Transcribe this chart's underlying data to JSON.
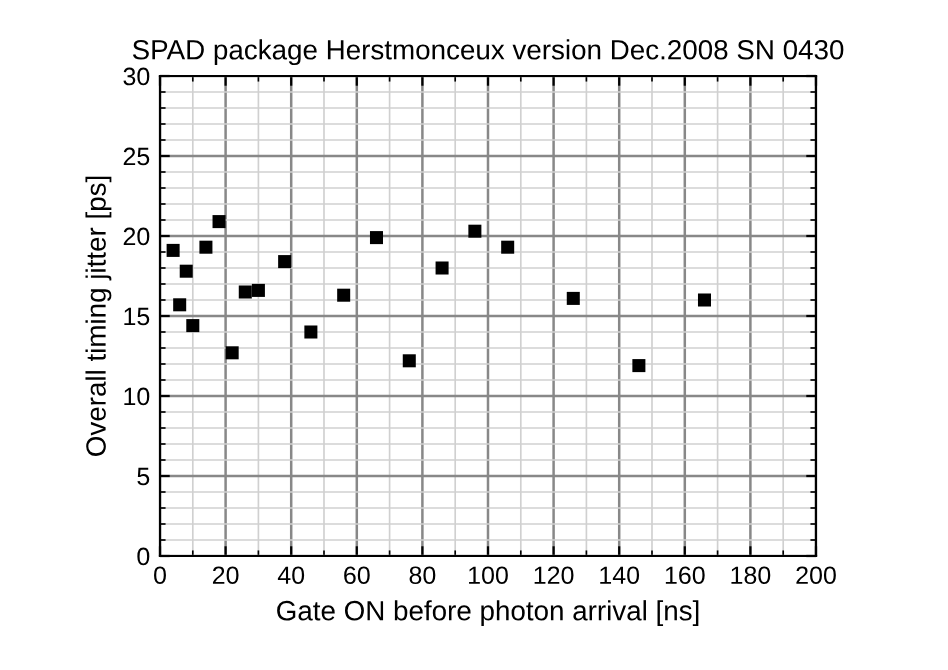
{
  "chart_data": {
    "type": "scatter",
    "title": "SPAD package Herstmonceux version Dec.2008 SN 0430",
    "xlabel": "Gate ON before photon arrival [ns]",
    "ylabel": "Overall timing jitter [ps]",
    "x": [
      4,
      6,
      8,
      10,
      14,
      18,
      22,
      26,
      30,
      38,
      46,
      56,
      66,
      76,
      86,
      96,
      106,
      126,
      146,
      166
    ],
    "series": [
      {
        "color": "#000000",
        "values": [
          19.1,
          15.7,
          17.8,
          14.4,
          19.3,
          20.9,
          12.7,
          16.5,
          16.6,
          18.4,
          14.0,
          16.3,
          19.9,
          12.2,
          18.0,
          20.3,
          19.3,
          16.1,
          11.9,
          16.0
        ]
      }
    ],
    "marker": "square",
    "xlim": [
      0,
      200
    ],
    "ylim": [
      0,
      30
    ],
    "xticks": [
      0,
      20,
      40,
      60,
      80,
      100,
      120,
      140,
      160,
      180,
      200
    ],
    "yticks": [
      0,
      5,
      10,
      15,
      20,
      25,
      30
    ],
    "grid": true
  }
}
